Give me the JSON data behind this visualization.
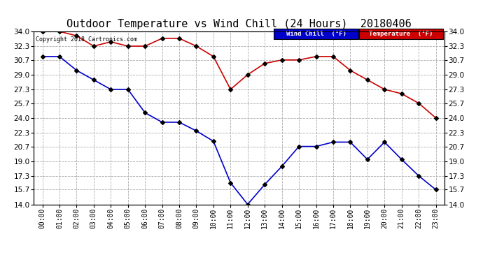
{
  "title": "Outdoor Temperature vs Wind Chill (24 Hours)  20180406",
  "copyright": "Copyright 2018 Cartronics.com",
  "legend_wind_chill": "Wind Chill  (°F)",
  "legend_temperature": "Temperature  (°F)",
  "hours": [
    "00:00",
    "01:00",
    "02:00",
    "03:00",
    "04:00",
    "05:00",
    "06:00",
    "07:00",
    "08:00",
    "09:00",
    "10:00",
    "11:00",
    "12:00",
    "13:00",
    "14:00",
    "15:00",
    "16:00",
    "17:00",
    "18:00",
    "19:00",
    "20:00",
    "21:00",
    "22:00",
    "23:00"
  ],
  "temperature": [
    34.0,
    34.0,
    33.5,
    32.3,
    32.8,
    32.3,
    32.3,
    33.2,
    33.2,
    32.3,
    31.1,
    27.3,
    29.0,
    30.3,
    30.7,
    30.7,
    31.1,
    31.1,
    29.5,
    28.4,
    27.3,
    26.8,
    25.7,
    24.0
  ],
  "wind_chill": [
    31.1,
    31.1,
    29.5,
    28.4,
    27.3,
    27.3,
    24.6,
    23.5,
    23.5,
    22.5,
    21.3,
    16.5,
    14.0,
    16.3,
    18.4,
    20.7,
    20.7,
    21.2,
    21.2,
    19.2,
    21.2,
    19.2,
    17.3,
    15.7
  ],
  "ylim_min": 14.0,
  "ylim_max": 34.0,
  "yticks": [
    14.0,
    15.7,
    17.3,
    19.0,
    20.7,
    22.3,
    24.0,
    25.7,
    27.3,
    29.0,
    30.7,
    32.3,
    34.0
  ],
  "temp_color": "#cc0000",
  "wind_chill_color": "#0000cc",
  "background_color": "#ffffff",
  "grid_color": "#aaaaaa",
  "title_fontsize": 11,
  "legend_bg_wind": "#0000cc",
  "legend_bg_temp": "#cc0000"
}
